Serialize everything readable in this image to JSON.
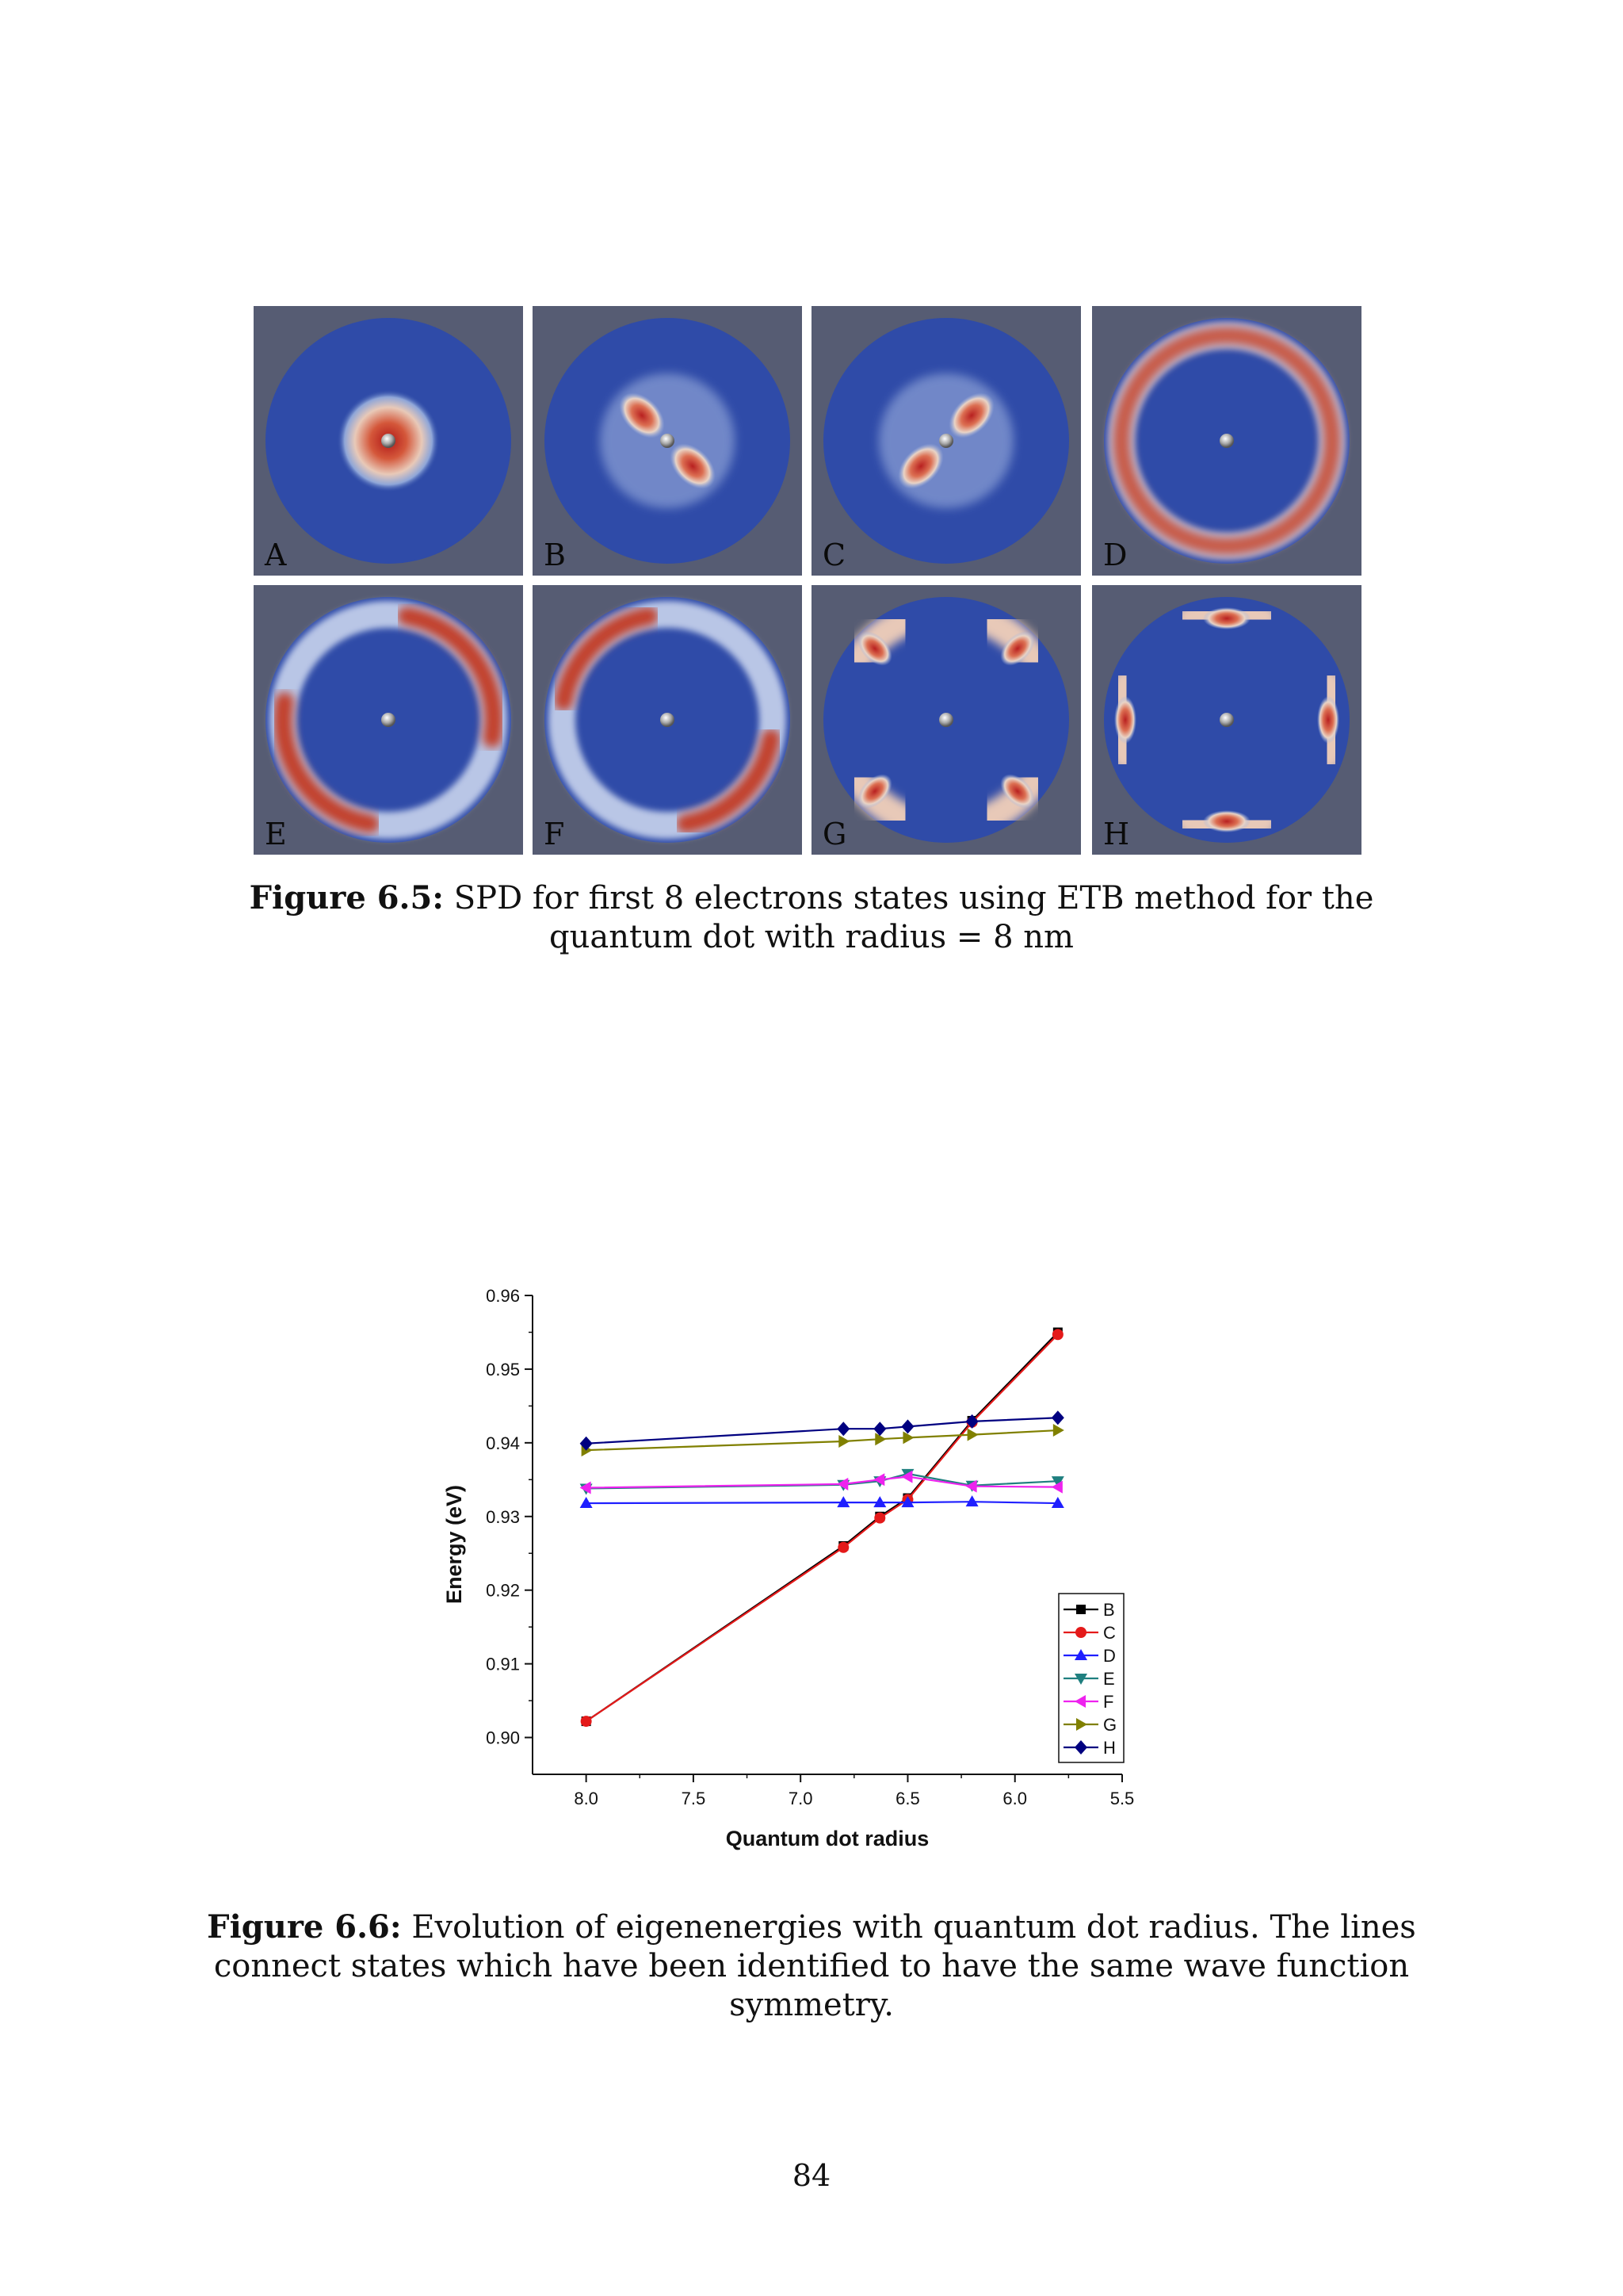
{
  "figure65": {
    "panels": [
      {
        "label": "A",
        "pattern": "s"
      },
      {
        "label": "B",
        "pattern": "p-diag"
      },
      {
        "label": "C",
        "pattern": "p-anti"
      },
      {
        "label": "D",
        "pattern": "ring"
      },
      {
        "label": "E",
        "pattern": "ring-two-lobe-a"
      },
      {
        "label": "F",
        "pattern": "ring-two-lobe-b"
      },
      {
        "label": "G",
        "pattern": "four-lobe-diag"
      },
      {
        "label": "H",
        "pattern": "four-lobe-axis"
      }
    ],
    "caption_label": "Figure 6.5:",
    "caption_text": " SPD for first 8 electrons states using ETB method for the quantum dot with radius = 8 nm"
  },
  "chart_data": {
    "type": "line",
    "xlabel": "Quantum dot radius",
    "ylabel": "Energy (eV)",
    "xlim": [
      8.25,
      5.5
    ],
    "ylim": [
      0.895,
      0.96
    ],
    "x_reversed": true,
    "xticks": [
      8.0,
      7.5,
      7.0,
      6.5,
      6.0,
      5.5
    ],
    "xtick_labels": [
      "8.0",
      "7.5",
      "7.0",
      "6.5",
      "6.0",
      "5.5"
    ],
    "yticks": [
      0.9,
      0.91,
      0.92,
      0.93,
      0.94,
      0.95,
      0.96
    ],
    "ytick_labels": [
      "0.90",
      "0.91",
      "0.92",
      "0.93",
      "0.94",
      "0.95",
      "0.96"
    ],
    "legend_position": "bottom-right",
    "series": [
      {
        "name": "B",
        "color": "#000000",
        "marker": "square",
        "x": [
          8.0,
          6.8,
          6.63,
          6.5,
          6.2,
          5.8
        ],
        "y": [
          0.9022,
          0.926,
          0.93,
          0.9325,
          0.943,
          0.955
        ]
      },
      {
        "name": "C",
        "color": "#e41a1a",
        "marker": "circle",
        "x": [
          8.0,
          6.8,
          6.63,
          6.5,
          6.2,
          5.8
        ],
        "y": [
          0.9022,
          0.9258,
          0.9298,
          0.9323,
          0.9428,
          0.9547
        ]
      },
      {
        "name": "D",
        "color": "#1f1fff",
        "marker": "triangle-up",
        "x": [
          8.0,
          6.8,
          6.63,
          6.5,
          6.2,
          5.8
        ],
        "y": [
          0.9318,
          0.9319,
          0.9319,
          0.9319,
          0.932,
          0.9318
        ]
      },
      {
        "name": "E",
        "color": "#1f7f7f",
        "marker": "triangle-down",
        "x": [
          8.0,
          6.8,
          6.63,
          6.5,
          6.2,
          5.8
        ],
        "y": [
          0.9338,
          0.9343,
          0.9348,
          0.9358,
          0.9342,
          0.9348
        ]
      },
      {
        "name": "F",
        "color": "#ee22ee",
        "marker": "triangle-left",
        "x": [
          8.0,
          6.8,
          6.63,
          6.5,
          6.2,
          5.8
        ],
        "y": [
          0.9339,
          0.9344,
          0.935,
          0.9354,
          0.9341,
          0.934
        ]
      },
      {
        "name": "G",
        "color": "#808000",
        "marker": "triangle-right",
        "x": [
          8.0,
          6.8,
          6.63,
          6.5,
          6.2,
          5.8
        ],
        "y": [
          0.939,
          0.9402,
          0.9405,
          0.9407,
          0.9411,
          0.9417
        ]
      },
      {
        "name": "H",
        "color": "#000080",
        "marker": "diamond",
        "x": [
          8.0,
          6.8,
          6.63,
          6.5,
          6.2,
          5.8
        ],
        "y": [
          0.9399,
          0.9419,
          0.9419,
          0.9422,
          0.9429,
          0.9434
        ]
      }
    ]
  },
  "figure66": {
    "caption_label": "Figure 6.6:",
    "caption_text": " Evolution of eigenenergies with quantum dot radius. The lines connect states which have been identified to have the same wave function symmetry."
  },
  "page_number": "84"
}
